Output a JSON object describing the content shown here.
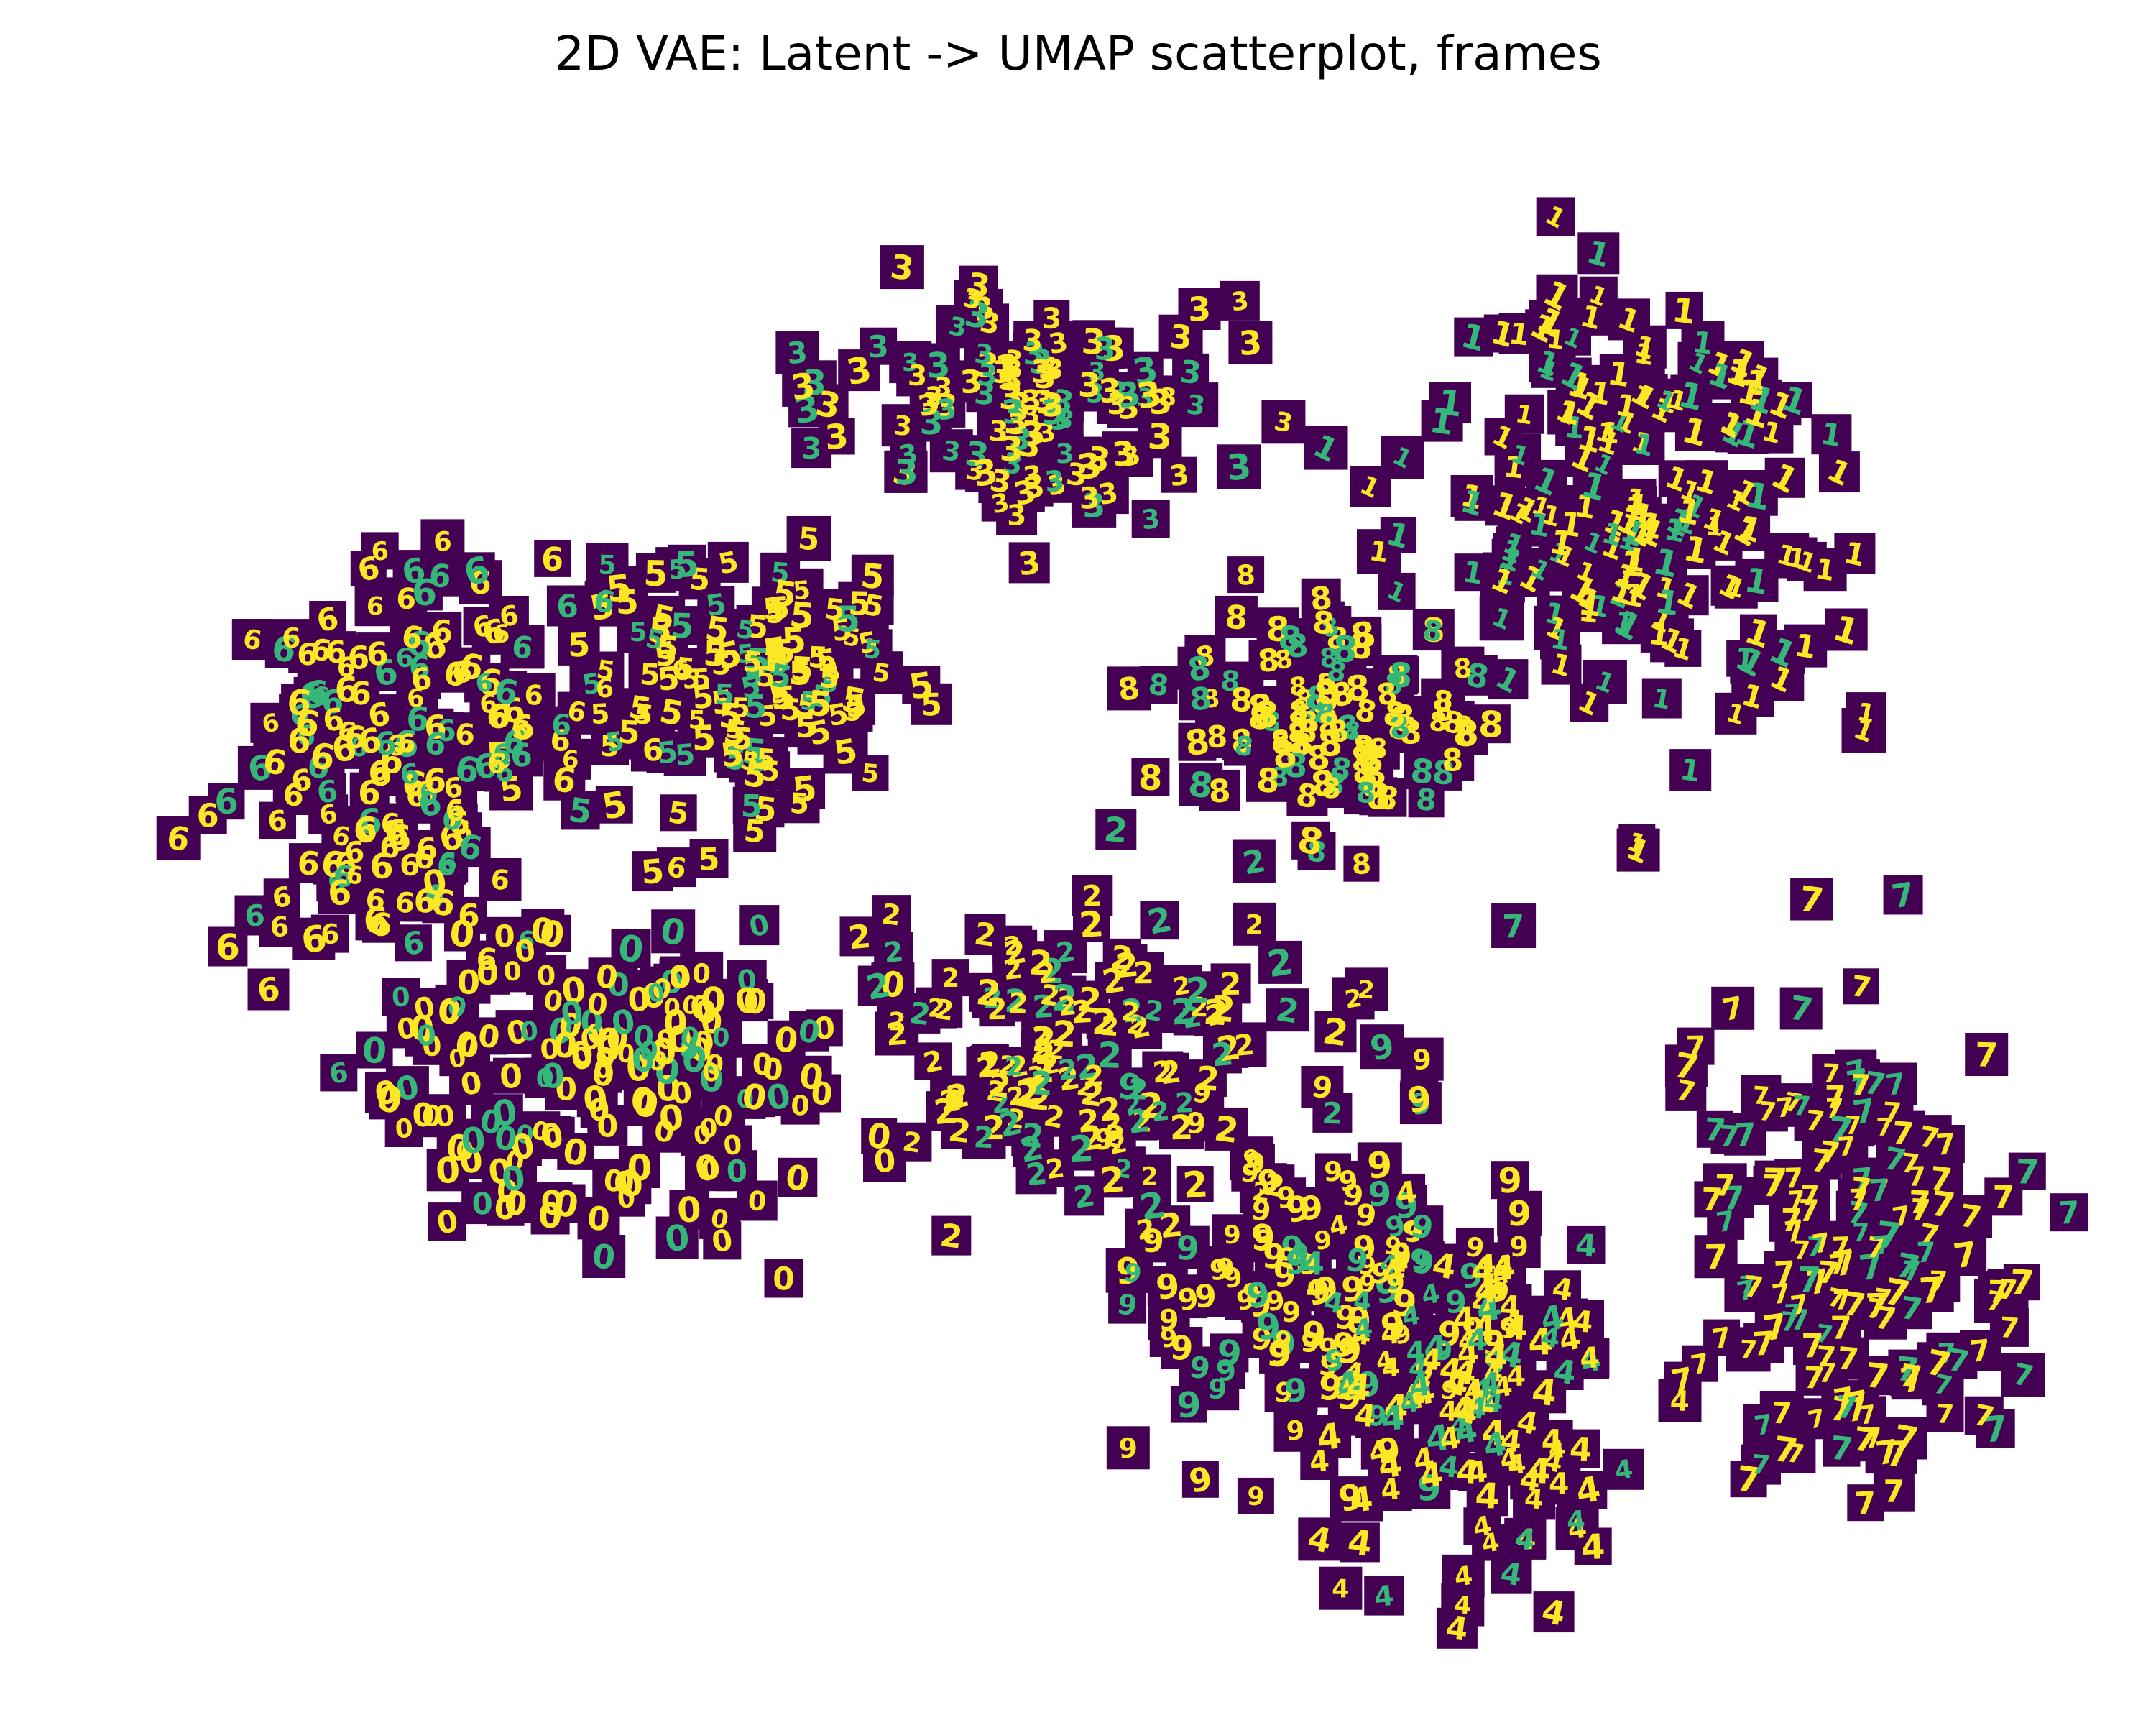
{
  "chart_data": {
    "type": "scatter",
    "title": "2D VAE: Latent -> UMAP scatterplot, frames",
    "xlabel": "",
    "ylabel": "",
    "axes_visible": false,
    "grid": false,
    "marker": "digit image thumbnail",
    "colormap": "viridis",
    "colors": {
      "background": "#440154",
      "stroke": "#fde725",
      "mid": "#35b779"
    },
    "clusters": [
      {
        "label": "1",
        "region": "upper-right",
        "orientation": "vertical to slanted"
      },
      {
        "label": "3",
        "region": "top-center"
      },
      {
        "label": "5",
        "region": "center-left"
      },
      {
        "label": "6",
        "region": "left"
      },
      {
        "label": "0",
        "region": "lower-left"
      },
      {
        "label": "8",
        "region": "center"
      },
      {
        "label": "2",
        "region": "center-bottom"
      },
      {
        "label": "9",
        "region": "lower-center"
      },
      {
        "label": "4",
        "region": "bottom-center"
      },
      {
        "label": "7",
        "region": "lower-right"
      }
    ]
  }
}
